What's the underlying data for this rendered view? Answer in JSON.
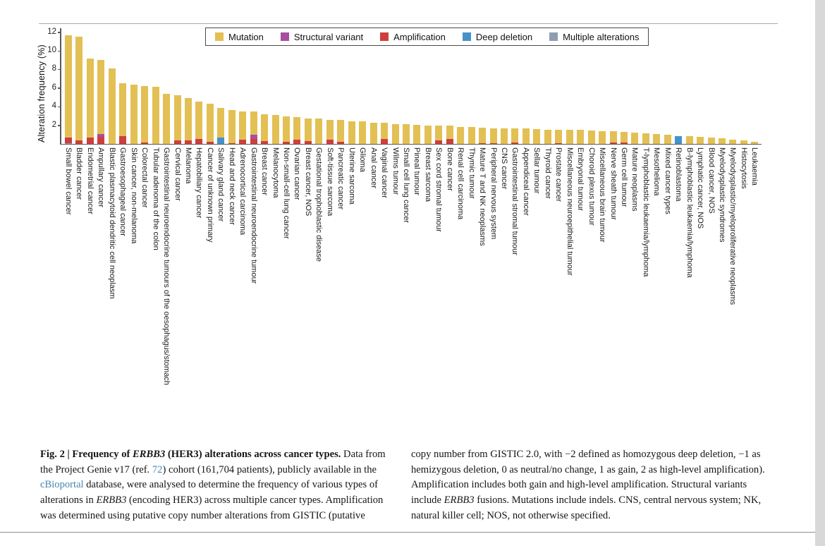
{
  "legend": {
    "items": [
      {
        "label": "Mutation",
        "color": "#e3c054"
      },
      {
        "label": "Structural variant",
        "color": "#a74f9f"
      },
      {
        "label": "Amplification",
        "color": "#ce3e3e"
      },
      {
        "label": "Deep deletion",
        "color": "#4692c8"
      },
      {
        "label": "Multiple alterations",
        "color": "#8e9db3"
      }
    ]
  },
  "chart_data": {
    "type": "bar",
    "subtype": "stacked-vertical",
    "title": "",
    "xlabel": "",
    "ylabel": "Alteration frequency (%)",
    "yticks": [
      2,
      4,
      6,
      8,
      10,
      12
    ],
    "ylim": [
      0,
      12.4
    ],
    "grid": false,
    "legend_position": "top",
    "stack_order_bottom_to_top": [
      "Multiple alterations",
      "Deep deletion",
      "Amplification",
      "Structural variant",
      "Mutation"
    ],
    "categories": [
      "Small bowel cancer",
      "Bladder cancer",
      "Endometrial cancer",
      "Ampullary cancer",
      "Blastic plasmacytoid dendritic cell neoplasm",
      "Gastroesophageal cancer",
      "Skin cancer, non-melanoma",
      "Colorectal cancer",
      "Tubular adenoma of the colon",
      "Gastrointestinal neuroendocrine tumours of the oesophagus/stomach",
      "Cervical cancer",
      "Melanoma",
      "Hepatobiliary cancer",
      "Cancer of unknown primary",
      "Salivary gland cancer",
      "Head and neck cancer",
      "Adrenocortical carcinoma",
      "Gastrointestinal neuroendocrine tumour",
      "Breast cancer",
      "Melanocytoma",
      "Non-small-cell lung cancer",
      "Ovarian cancer",
      "Breast cancer, NOS",
      "Gestational trophoblastic disease",
      "Soft-tissue sarcoma",
      "Pancreatic cancer",
      "Uterine sarcoma",
      "Glioma",
      "Anal cancer",
      "Vaginal cancer",
      "Wilms tumour",
      "Small cell lung cancer",
      "Pineal tumour",
      "Breast sarcoma",
      "Sex cord stromal tumour",
      "Bone cancer",
      "Renal cell carcinoma",
      "Thymic tumour",
      "Mature T and NK neoplasms",
      "Peripheral nervous system",
      "CNS cancer",
      "Gastrointestinal stromal tumour",
      "Appendiceal cancer",
      "Sellar tumour",
      "Thyroid cancer",
      "Prostate cancer",
      "Miscellaneous neuroepithelial tumour",
      "Embryonal tumour",
      "Choroid plexus tumour",
      "Miscellaneous brain tumour",
      "Nerve sheath tumour",
      "Germ cell tumour",
      "Mature neoplasms",
      "T-lymphoblastic leukaemia/lymphoma",
      "Mesothelioma",
      "Mixed cancer types",
      "Retinoblastoma",
      "B-lymphoblastic leukaemia/lymphoma",
      "Lymphatic cancer, NOS",
      "Blood cancer, NOS",
      "Myelodysplastic syndromes",
      "Myelodysplastic/myeloproliferative neoplasms",
      "Histocytosis",
      "Leukaemia"
    ],
    "series": [
      {
        "name": "Mutation",
        "color": "#e3c054",
        "values": [
          11.0,
          11.15,
          8.55,
          7.95,
          8.1,
          5.7,
          6.4,
          6.05,
          6.1,
          5.4,
          4.8,
          4.55,
          4.05,
          4.05,
          3.2,
          3.5,
          3.05,
          2.5,
          2.9,
          3.1,
          2.75,
          2.4,
          2.45,
          2.7,
          2.15,
          2.35,
          2.45,
          2.4,
          2.3,
          1.75,
          2.15,
          2.1,
          2.05,
          2.0,
          1.65,
          1.4,
          1.85,
          1.8,
          1.65,
          1.6,
          1.7,
          1.5,
          1.65,
          1.6,
          1.55,
          1.45,
          1.5,
          1.5,
          1.45,
          1.4,
          1.2,
          1.15,
          1.2,
          1.1,
          1.05,
          1.0,
          0,
          0.8,
          0.75,
          0.7,
          0.6,
          0.45,
          0.35,
          0.2
        ]
      },
      {
        "name": "Structural variant",
        "color": "#a74f9f",
        "values": [
          0,
          0,
          0,
          0.3,
          0,
          0,
          0,
          0,
          0,
          0,
          0,
          0,
          0,
          0,
          0,
          0,
          0,
          0.4,
          0,
          0,
          0,
          0,
          0,
          0,
          0,
          0,
          0,
          0,
          0,
          0,
          0,
          0,
          0,
          0,
          0,
          0,
          0,
          0,
          0,
          0,
          0,
          0,
          0,
          0,
          0,
          0,
          0,
          0,
          0,
          0,
          0,
          0,
          0,
          0,
          0,
          0,
          0,
          0,
          0,
          0,
          0,
          0,
          0,
          0
        ]
      },
      {
        "name": "Amplification",
        "color": "#ce3e3e",
        "values": [
          0.6,
          0.35,
          0.65,
          0.75,
          0,
          0.8,
          0,
          0.15,
          0,
          0,
          0.4,
          0.35,
          0.5,
          0.25,
          0,
          0.1,
          0.45,
          0.55,
          0.3,
          0,
          0.2,
          0.45,
          0.3,
          0,
          0.45,
          0.2,
          0,
          0,
          0,
          0.5,
          0,
          0,
          0,
          0,
          0.35,
          0.55,
          0,
          0,
          0.1,
          0.1,
          0,
          0.15,
          0,
          0,
          0,
          0.1,
          0,
          0,
          0,
          0,
          0.15,
          0.15,
          0,
          0,
          0,
          0,
          0,
          0,
          0,
          0,
          0,
          0,
          0,
          0
        ]
      },
      {
        "name": "Deep deletion",
        "color": "#4692c8",
        "values": [
          0,
          0,
          0,
          0,
          0,
          0,
          0,
          0,
          0,
          0,
          0,
          0,
          0,
          0,
          0.7,
          0,
          0,
          0,
          0,
          0,
          0,
          0,
          0,
          0,
          0,
          0,
          0,
          0,
          0,
          0,
          0,
          0,
          0,
          0,
          0,
          0,
          0,
          0,
          0,
          0,
          0,
          0,
          0,
          0,
          0,
          0,
          0,
          0,
          0,
          0,
          0,
          0,
          0,
          0,
          0,
          0,
          0.85,
          0,
          0,
          0,
          0,
          0,
          0,
          0
        ]
      },
      {
        "name": "Multiple alterations",
        "color": "#8e9db3",
        "values": [
          0.1,
          0,
          0,
          0,
          0,
          0,
          0,
          0,
          0,
          0,
          0,
          0,
          0,
          0,
          0,
          0,
          0,
          0,
          0,
          0,
          0,
          0,
          0,
          0,
          0,
          0,
          0,
          0,
          0,
          0,
          0,
          0,
          0,
          0,
          0,
          0,
          0,
          0,
          0,
          0,
          0,
          0,
          0,
          0,
          0,
          0,
          0,
          0,
          0,
          0,
          0,
          0,
          0,
          0,
          0,
          0,
          0,
          0,
          0,
          0,
          0,
          0,
          0,
          0
        ]
      }
    ]
  },
  "caption": {
    "left_segments": [
      {
        "t": "Fig. 2 | Frequency of ",
        "b": true
      },
      {
        "t": "ERBB3",
        "b": true,
        "i": true
      },
      {
        "t": " (HER3) alterations across cancer types.",
        "b": true
      },
      {
        "t": " Data from the Project Genie v17 (ref. "
      },
      {
        "t": "72",
        "link": true
      },
      {
        "t": ") cohort (161,704 patients), publicly available in the "
      },
      {
        "t": "cBioportal",
        "link": true
      },
      {
        "t": " database, were analysed to determine the frequency of various types of alterations in "
      },
      {
        "t": "ERBB3",
        "i": true
      },
      {
        "t": " (encoding HER3) across multiple cancer types. Amplification was determined using putative copy number alterations from GISTIC (putative"
      }
    ],
    "right_segments": [
      {
        "t": "copy number from GISTIC 2.0, with −2 defined as homozygous deep deletion, −1 as hemizygous deletion, 0 as neutral/no change, 1 as gain, 2 as high-level amplification). Amplification includes both gain and high-level amplification. Structural variants include "
      },
      {
        "t": "ERBB3",
        "i": true
      },
      {
        "t": " fusions. Mutations include indels. CNS, central nervous system; NK, natural killer cell; NOS, not otherwise specified."
      }
    ]
  }
}
